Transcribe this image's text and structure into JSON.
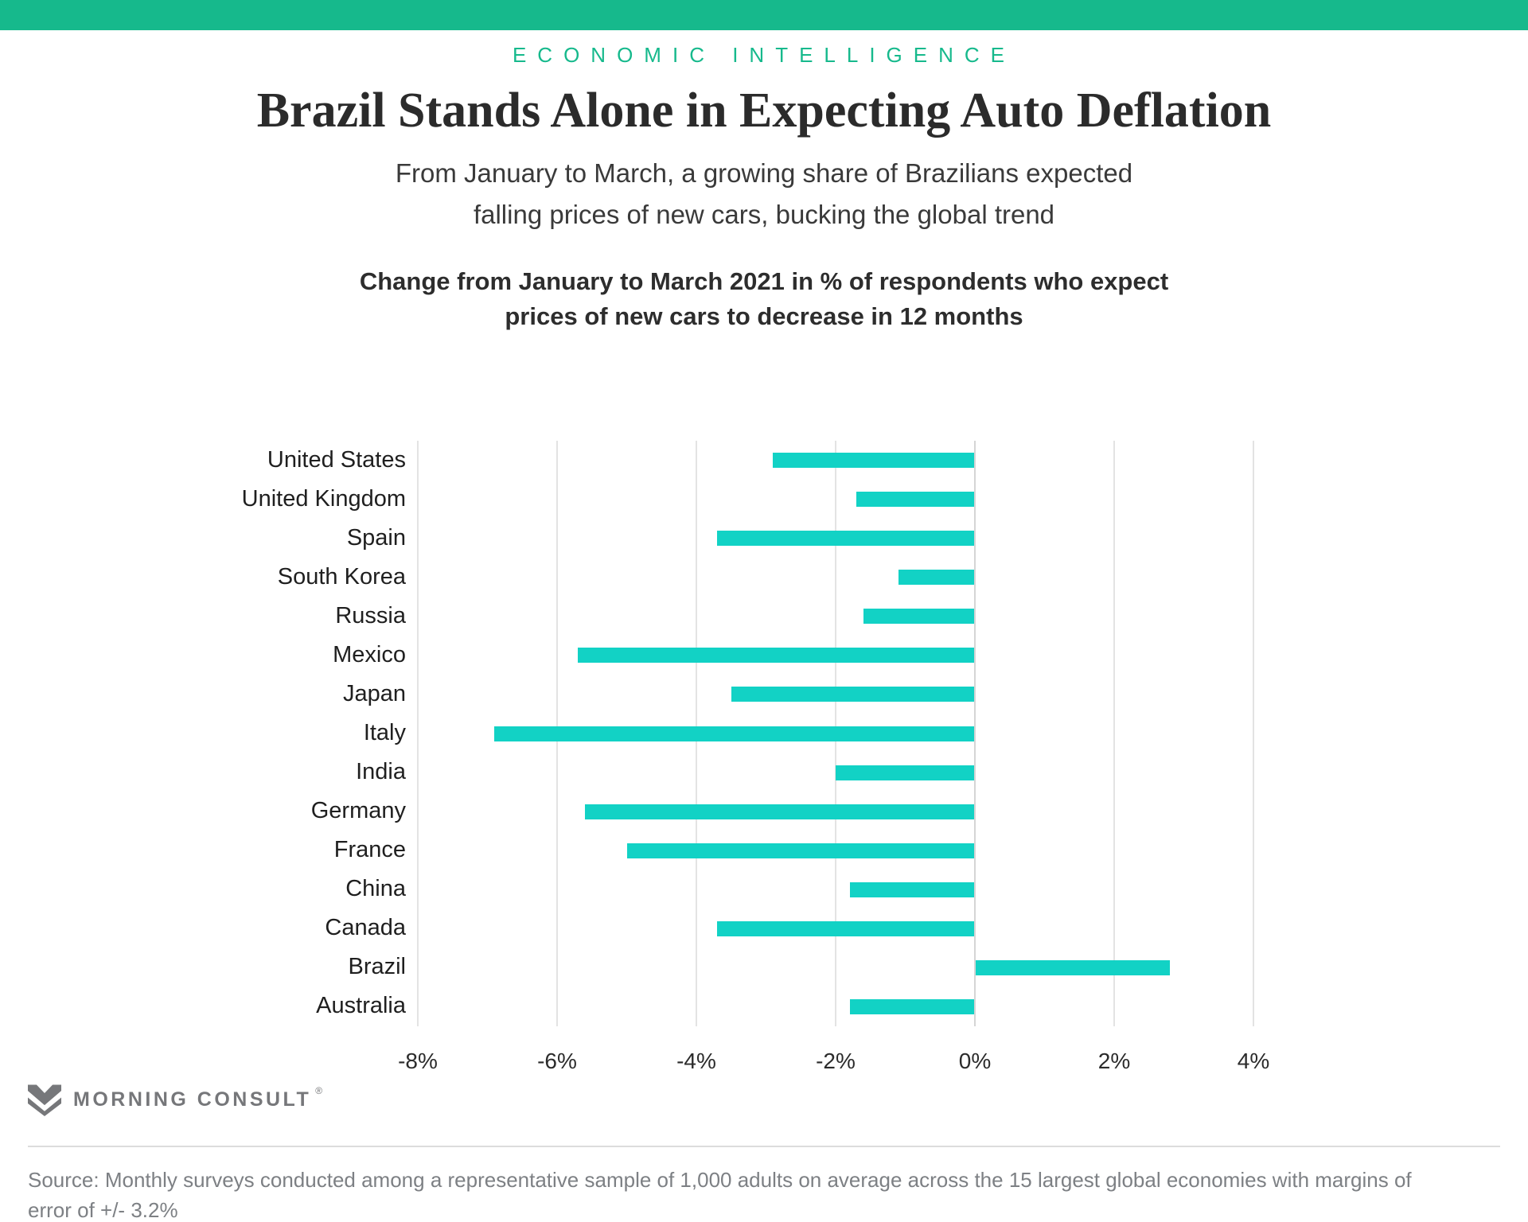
{
  "header": {
    "kicker": "ECONOMIC INTELLIGENCE",
    "title": "Brazil Stands Alone in Expecting Auto Deflation",
    "subtitle": "From January to March, a growing share of Brazilians expected\nfalling prices of new cars, bucking the global trend"
  },
  "chart_data": {
    "type": "bar",
    "orientation": "horizontal",
    "title": "Change from January to March 2021 in % of respondents who expect\nprices of new cars to decrease in 12 months",
    "categories": [
      "United States",
      "United Kingdom",
      "Spain",
      "South Korea",
      "Russia",
      "Mexico",
      "Japan",
      "Italy",
      "India",
      "Germany",
      "France",
      "China",
      "Canada",
      "Brazil",
      "Australia"
    ],
    "values": [
      -2.9,
      -1.7,
      -3.7,
      -1.1,
      -1.6,
      -5.7,
      -3.5,
      -6.9,
      -2.0,
      -5.6,
      -5.0,
      -1.8,
      -3.7,
      2.8,
      -1.8
    ],
    "unit": "%",
    "x_ticks": [
      -8,
      -6,
      -4,
      -2,
      0,
      2,
      4
    ],
    "x_tick_labels": [
      "-8%",
      "-6%",
      "-4%",
      "-2%",
      "0%",
      "2%",
      "4%"
    ],
    "xlim": [
      -8.5,
      4.6
    ],
    "grid": true,
    "legend": false,
    "bar_color": "#12d2c5"
  },
  "footer": {
    "brand": "MORNING CONSULT",
    "registered_mark": "®",
    "source": "Source: Monthly surveys conducted among a representative sample of 1,000 adults on average across the 15 largest global economies with margins of\nerror of +/- 3.2%"
  },
  "colors": {
    "accent_green": "#16b98c",
    "bar_teal": "#12d2c5",
    "gridline": "#e3e3e3",
    "zero_line": "#d5d5d5",
    "text_dark": "#2b2b2b",
    "text_gray": "#7d8084",
    "logo_gray": "#76777a"
  }
}
